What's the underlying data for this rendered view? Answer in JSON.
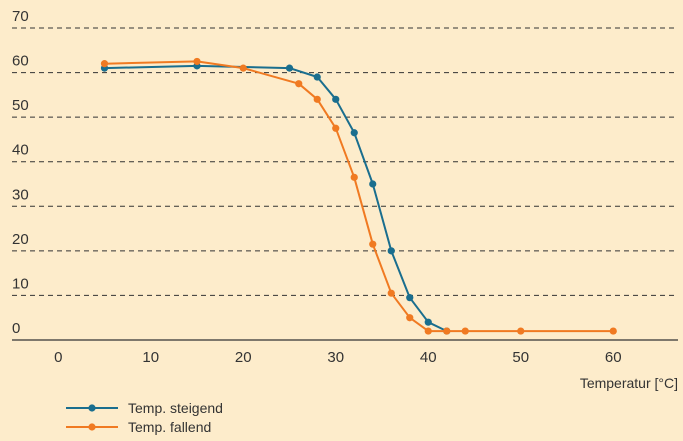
{
  "chart_data": {
    "type": "line",
    "xlabel": "Temperatur [°C]",
    "ylabel": "",
    "xlim": [
      -5,
      67
    ],
    "ylim": [
      0,
      70
    ],
    "x_ticks": [
      "0",
      "10",
      "20",
      "30",
      "40",
      "50",
      "60"
    ],
    "y_ticks": [
      "0",
      "10",
      "20",
      "30",
      "40",
      "50",
      "60",
      "70"
    ],
    "grid": "horizontal-dashed",
    "legend_position": "bottom-left",
    "colors": {
      "background": "#fdeccb",
      "text": "#333333",
      "grid": "#333333"
    },
    "series": [
      {
        "name": "Temp. steigend",
        "color": "#1a6e8e",
        "x": [
          5,
          15,
          25,
          28,
          30,
          32,
          34,
          36,
          38,
          40,
          42
        ],
        "y": [
          61,
          61.5,
          61,
          59,
          54,
          46.5,
          35,
          20,
          9.5,
          4,
          2
        ]
      },
      {
        "name": "Temp. fallend",
        "color": "#f07a22",
        "x": [
          5,
          15,
          20,
          26,
          28,
          30,
          32,
          34,
          36,
          38,
          40,
          42,
          44,
          50,
          60
        ],
        "y": [
          62,
          62.5,
          61,
          57.5,
          54,
          47.5,
          36.5,
          21.5,
          10.5,
          5,
          2,
          2,
          2,
          2,
          2
        ]
      }
    ]
  }
}
